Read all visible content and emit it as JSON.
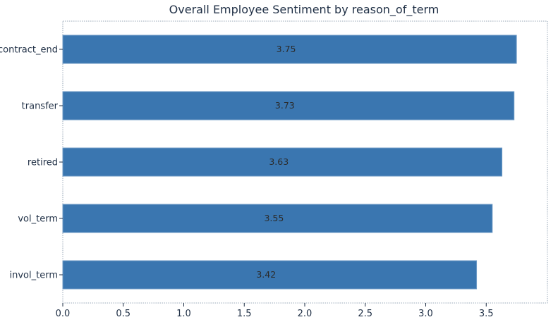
{
  "chart_data": {
    "type": "bar",
    "orientation": "horizontal",
    "title": "Overall Employee Sentiment by reason_of_term",
    "xlabel": "",
    "ylabel": "",
    "categories": [
      "contract_end",
      "transfer",
      "retired",
      "vol_term",
      "invol_term"
    ],
    "values": [
      3.75,
      3.73,
      3.63,
      3.55,
      3.42
    ],
    "data_labels": [
      "3.75",
      "3.73",
      "3.63",
      "3.55",
      "3.42"
    ],
    "xlim": [
      0.0,
      4.0
    ],
    "xticks": [
      0.0,
      0.5,
      1.0,
      1.5,
      2.0,
      2.5,
      3.0,
      3.5
    ],
    "xtick_labels": [
      "0.0",
      "0.5",
      "1.0",
      "1.5",
      "2.0",
      "2.5",
      "3.0",
      "3.5"
    ],
    "grid": false,
    "legend": "none",
    "colors": {
      "bar": "#3a76b0",
      "text": "#1f2f45"
    }
  }
}
